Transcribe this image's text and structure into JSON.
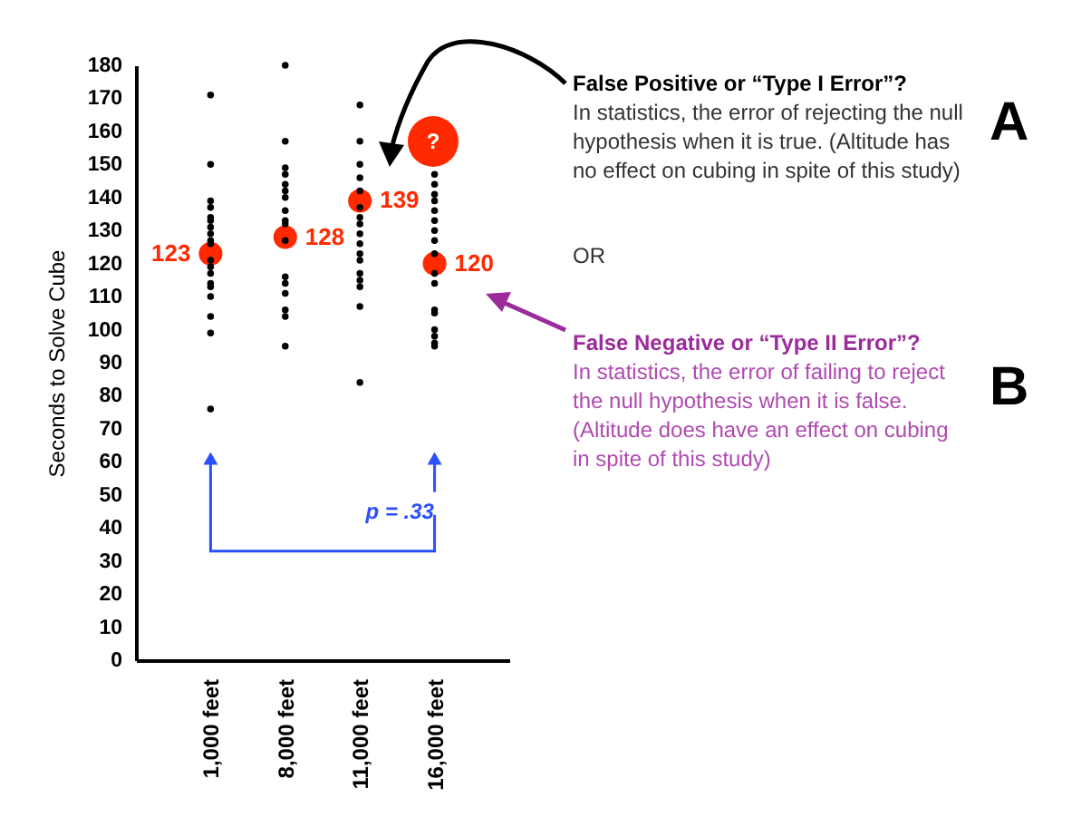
{
  "chart_data": {
    "type": "scatter",
    "ylabel": "Seconds to Solve Cube",
    "categories": [
      "1,000 feet",
      "8,000 feet",
      "11,000 feet",
      "16,000 feet"
    ],
    "ylim": [
      0,
      180
    ],
    "yticks": [
      0,
      10,
      20,
      30,
      40,
      50,
      60,
      70,
      80,
      90,
      100,
      110,
      120,
      130,
      140,
      150,
      160,
      170,
      180
    ],
    "marker": "circle",
    "series": [
      {
        "color": "#000000",
        "x": [
          "1,000 feet",
          "1,000 feet",
          "1,000 feet",
          "1,000 feet",
          "1,000 feet",
          "1,000 feet",
          "1,000 feet",
          "1,000 feet",
          "1,000 feet",
          "1,000 feet",
          "1,000 feet",
          "1,000 feet",
          "1,000 feet",
          "1,000 feet",
          "1,000 feet",
          "1,000 feet",
          "1,000 feet",
          "1,000 feet",
          "1,000 feet",
          "8,000 feet",
          "8,000 feet",
          "8,000 feet",
          "8,000 feet",
          "8,000 feet",
          "8,000 feet",
          "8,000 feet",
          "8,000 feet",
          "8,000 feet",
          "8,000 feet",
          "8,000 feet",
          "8,000 feet",
          "8,000 feet",
          "8,000 feet",
          "8,000 feet",
          "8,000 feet",
          "8,000 feet",
          "11,000 feet",
          "11,000 feet",
          "11,000 feet",
          "11,000 feet",
          "11,000 feet",
          "11,000 feet",
          "11,000 feet",
          "11,000 feet",
          "11,000 feet",
          "11,000 feet",
          "11,000 feet",
          "11,000 feet",
          "11,000 feet",
          "11,000 feet",
          "11,000 feet",
          "11,000 feet",
          "11,000 feet",
          "16,000 feet",
          "16,000 feet",
          "16,000 feet",
          "16,000 feet",
          "16,000 feet",
          "16,000 feet",
          "16,000 feet",
          "16,000 feet",
          "16,000 feet",
          "16,000 feet",
          "16,000 feet",
          "16,000 feet",
          "16,000 feet",
          "16,000 feet",
          "16,000 feet",
          "16,000 feet",
          "16,000 feet"
        ],
        "values": [
          171,
          150,
          139,
          137,
          134,
          133,
          131,
          129,
          127,
          126,
          121,
          119,
          117,
          114,
          113,
          110,
          104,
          99,
          76,
          180,
          157,
          149,
          147,
          144,
          142,
          140,
          136,
          133,
          132,
          127,
          116,
          114,
          111,
          106,
          104,
          95,
          168,
          157,
          150,
          146,
          142,
          137,
          134,
          132,
          129,
          126,
          123,
          121,
          117,
          115,
          113,
          107,
          84,
          147,
          144,
          141,
          139,
          136,
          133,
          130,
          127,
          123,
          117,
          114,
          106,
          105,
          100,
          98,
          96,
          95
        ]
      },
      {
        "color": "#ff2a00",
        "values": [
          123,
          128,
          139,
          120
        ],
        "value_labels": [
          "123",
          "128",
          "139",
          "120"
        ]
      }
    ],
    "annotations": [
      "False Positive or “Type I Error”?",
      "In statistics, the error of rejecting the null hypothesis when it is true. (Altitude has no effect on cubing in spite of this study)",
      "OR",
      "False Negative or “Type II Error”?",
      "In statistics, the error of failing to reject the null hypothesis when it is false. (Altitude does have an effect on cubing in spite of this study)",
      "A",
      "B",
      "?",
      "p = .33"
    ]
  }
}
